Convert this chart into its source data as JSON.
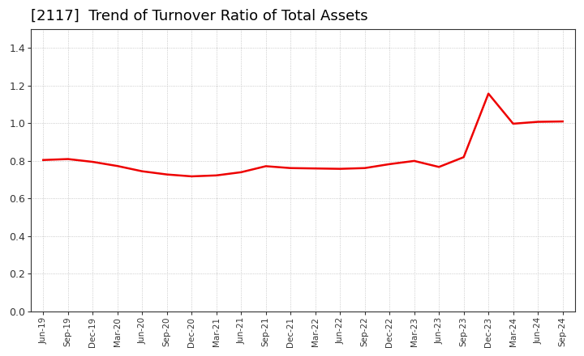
{
  "title": "[2117]  Trend of Turnover Ratio of Total Assets",
  "title_fontsize": 13,
  "line_color": "#EE0000",
  "background_color": "#FFFFFF",
  "grid_color": "#BBBBBB",
  "ylim": [
    0.0,
    1.5
  ],
  "yticks": [
    0.0,
    0.2,
    0.4,
    0.6,
    0.8,
    1.0,
    1.2,
    1.4
  ],
  "x_labels": [
    "Jun-19",
    "Sep-19",
    "Dec-19",
    "Mar-20",
    "Jun-20",
    "Sep-20",
    "Dec-20",
    "Mar-21",
    "Jun-21",
    "Sep-21",
    "Dec-21",
    "Mar-22",
    "Jun-22",
    "Sep-22",
    "Dec-22",
    "Mar-23",
    "Jun-23",
    "Sep-23",
    "Dec-23",
    "Mar-24",
    "Jun-24",
    "Sep-24"
  ],
  "y_values": [
    0.805,
    0.81,
    0.795,
    0.773,
    0.745,
    0.728,
    0.718,
    0.723,
    0.74,
    0.772,
    0.762,
    0.76,
    0.758,
    0.762,
    0.783,
    0.8,
    0.768,
    0.82,
    1.158,
    0.998,
    1.008,
    1.01
  ]
}
